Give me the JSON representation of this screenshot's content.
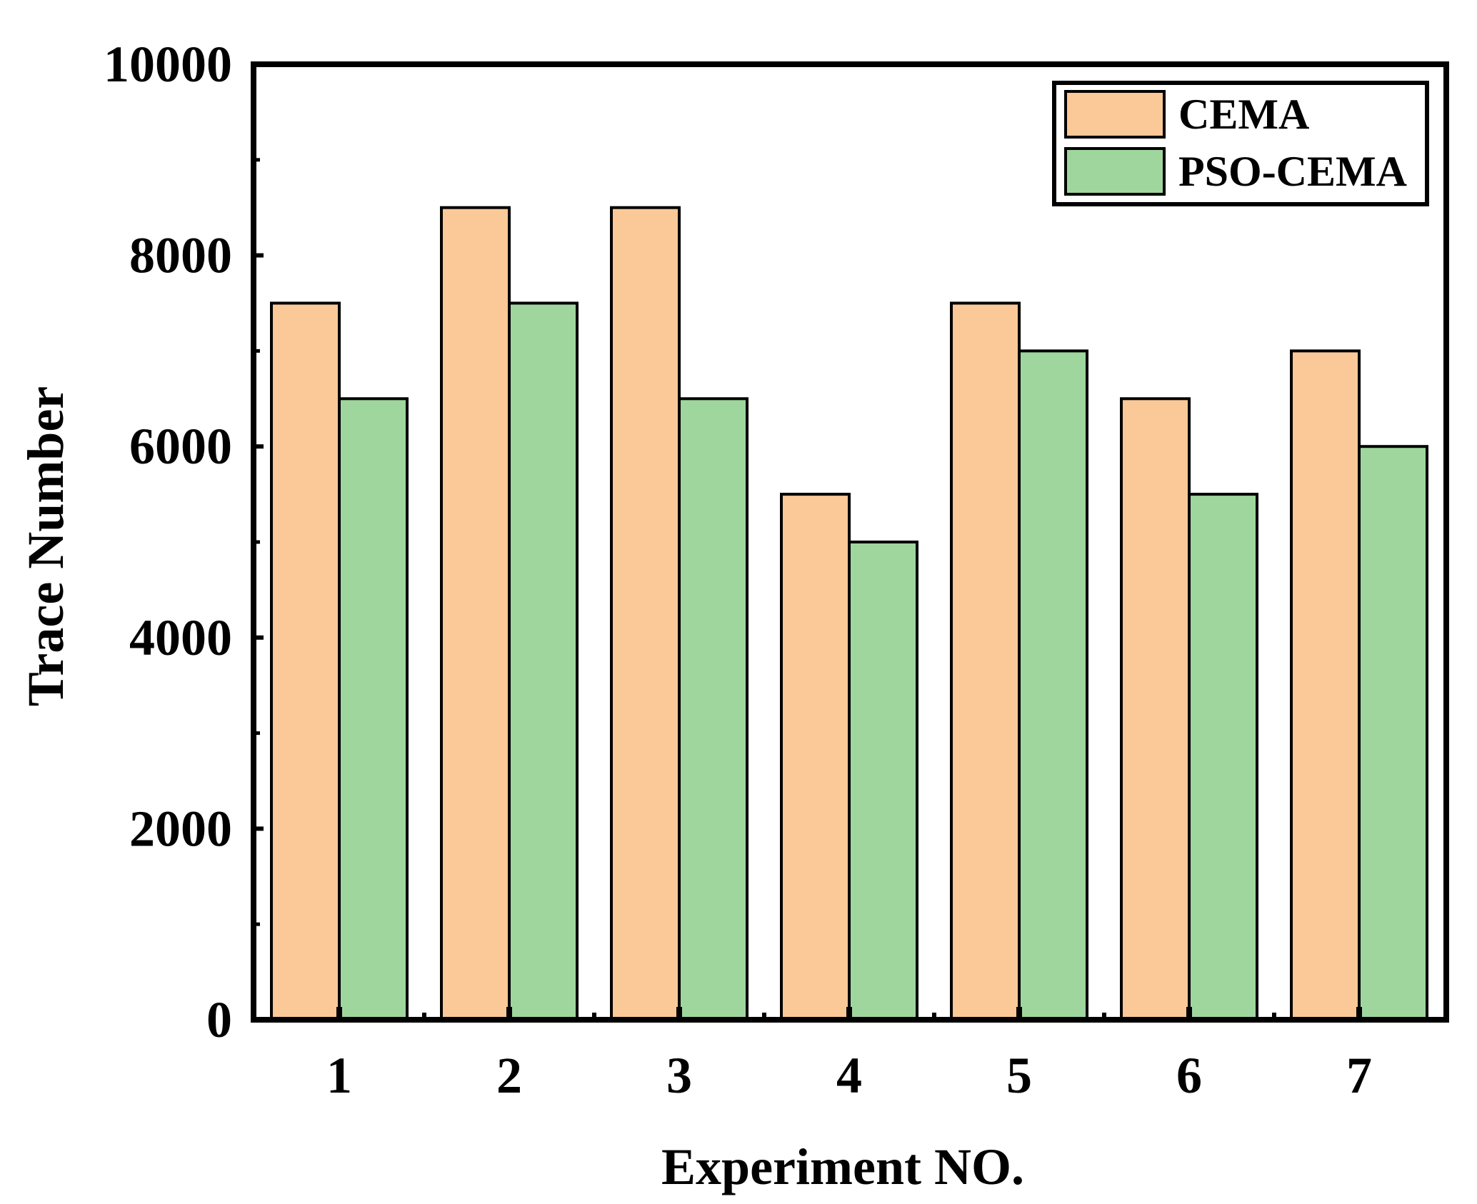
{
  "chart_data": {
    "type": "bar",
    "title": "",
    "xlabel": "Experiment NO.",
    "ylabel": "Trace Number",
    "categories": [
      "1",
      "2",
      "3",
      "4",
      "5",
      "6",
      "7"
    ],
    "series": [
      {
        "name": "CEMA",
        "color": "#fbc897",
        "values": [
          7500,
          8500,
          8500,
          5500,
          7500,
          6500,
          7000
        ]
      },
      {
        "name": "PSO-CEMA",
        "color": "#9fd69d",
        "values": [
          6500,
          7500,
          6500,
          5000,
          7000,
          5500,
          6000
        ]
      }
    ],
    "ylim": [
      0,
      10000
    ],
    "yticks": [
      0,
      2000,
      4000,
      6000,
      8000,
      10000
    ],
    "ytick_labels": [
      "0",
      "2000",
      "4000",
      "6000",
      "8000",
      "10000"
    ],
    "grid": false,
    "legend_position": "top-right"
  }
}
